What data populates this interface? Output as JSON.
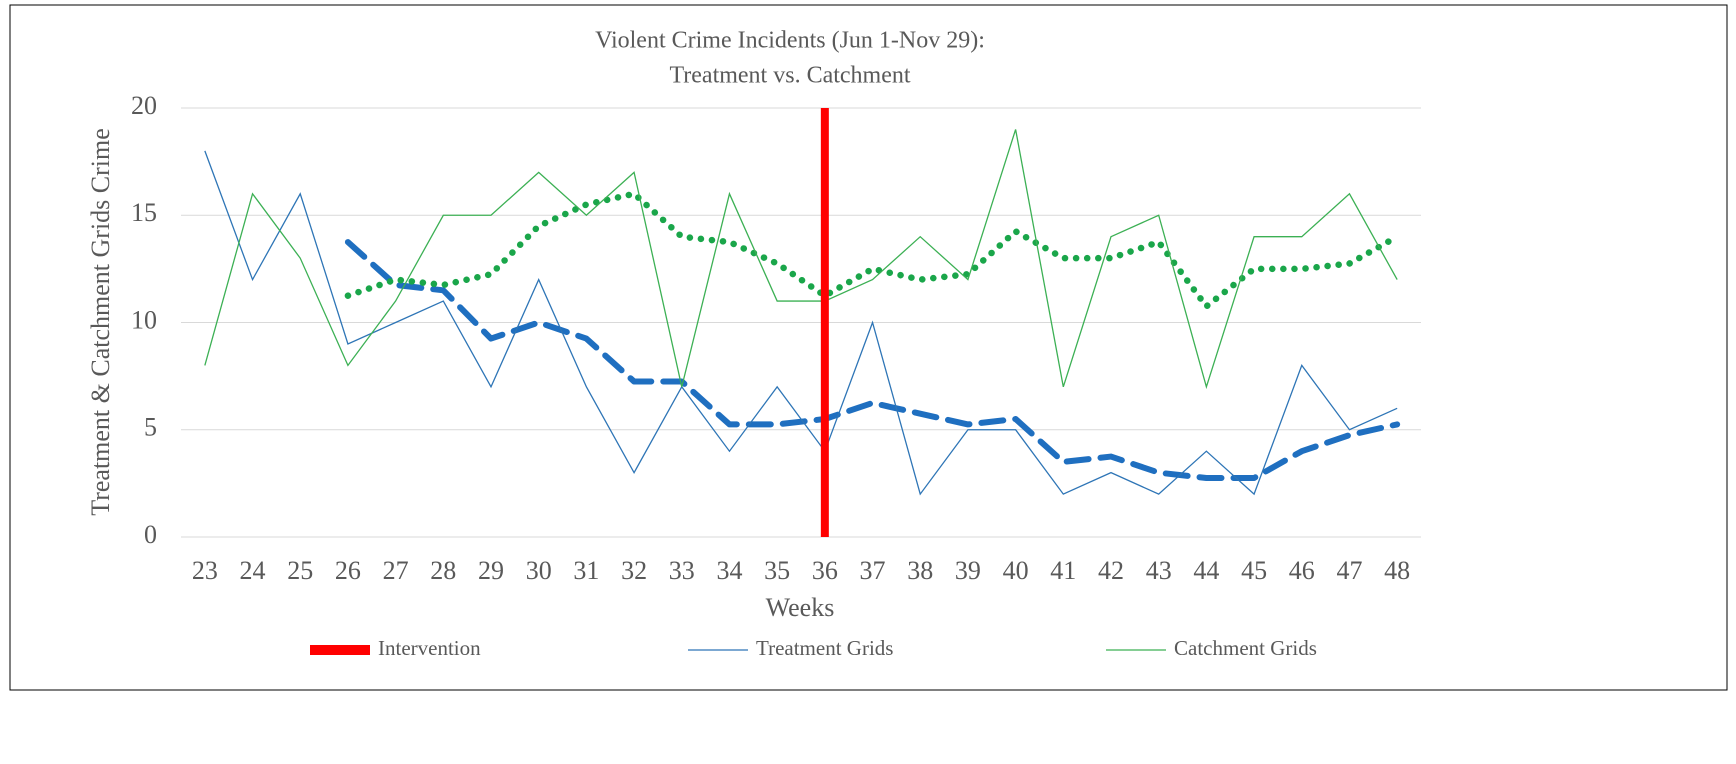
{
  "chart_data": {
    "type": "line",
    "title": [
      "Violent Crime Incidents (Jun 1-Nov 29):",
      "Treatment vs. Catchment"
    ],
    "x_label": "Weeks",
    "y_label": "Treatment & Catchment Grids Crime",
    "categories": [
      "23",
      "24",
      "25",
      "26",
      "27",
      "28",
      "29",
      "30",
      "31",
      "32",
      "33",
      "34",
      "35",
      "36",
      "37",
      "38",
      "39",
      "40",
      "41",
      "42",
      "43",
      "44",
      "45",
      "46",
      "47",
      "48"
    ],
    "series": [
      {
        "name": "Treatment Grids",
        "color": "#2e75b6",
        "values": [
          18,
          12,
          16,
          9,
          10,
          11,
          7,
          12,
          7,
          3,
          7,
          4,
          7,
          4,
          10,
          2,
          5,
          5,
          2,
          3,
          2,
          4,
          2,
          8,
          5,
          6
        ]
      },
      {
        "name": "Catchment Grids",
        "color": "#3cb054",
        "values": [
          8,
          16,
          13,
          8,
          11,
          15,
          15,
          17,
          15,
          17,
          7,
          16,
          11,
          11,
          12,
          14,
          12,
          19,
          7,
          14,
          15,
          7,
          14,
          14,
          16,
          12
        ]
      }
    ],
    "trendlines": [
      {
        "color": "#1f6fc0",
        "style": "dashed",
        "values": [
          null,
          null,
          null,
          13.75,
          11.75,
          11.5,
          9.25,
          10,
          9.25,
          7.25,
          7.25,
          5.25,
          5.25,
          5.5,
          6.25,
          5.75,
          5.25,
          5.5,
          3.5,
          3.75,
          3,
          2.75,
          2.75,
          4,
          4.75,
          5.25
        ]
      },
      {
        "color": "#1aa64a",
        "style": "dotted",
        "values": [
          null,
          null,
          null,
          11.25,
          12,
          11.75,
          12.25,
          14.5,
          15.5,
          16,
          14,
          13.75,
          12.75,
          11.25,
          12.5,
          12,
          12.25,
          14.25,
          13,
          13,
          13.75,
          10.75,
          12.5,
          12.5,
          12.75,
          14
        ]
      }
    ],
    "intervention": {
      "name": "Intervention",
      "color": "#ff0000",
      "category": "36"
    },
    "ylim": [
      0,
      20
    ],
    "yticks": [
      0,
      5,
      10,
      15,
      20
    ],
    "grid": true,
    "legend": "bottom"
  }
}
